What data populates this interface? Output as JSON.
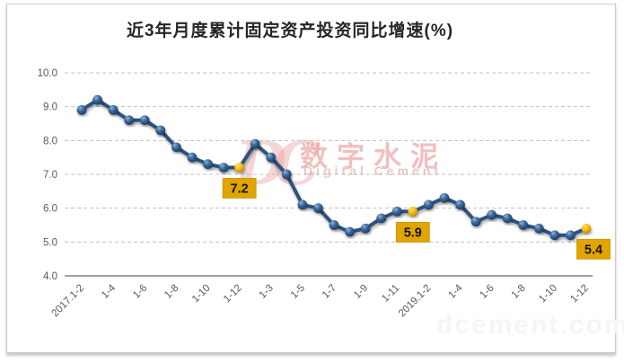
{
  "title": "近3年月度累计固定资产投资同比增速(%)",
  "watermark": {
    "monogram": "DC",
    "cn": "数字水泥",
    "en": "Digital Cement",
    "url": "dcement.com"
  },
  "chart_data": {
    "type": "line",
    "title": "近3年月度累计固定资产投资同比增速(%)",
    "n_points": 33,
    "values": [
      8.9,
      9.2,
      8.9,
      8.6,
      8.6,
      8.3,
      7.8,
      7.5,
      7.3,
      7.2,
      7.2,
      7.9,
      7.5,
      7.0,
      6.1,
      6.0,
      5.5,
      5.3,
      5.4,
      5.7,
      5.9,
      5.9,
      6.1,
      6.3,
      6.1,
      5.6,
      5.8,
      5.7,
      5.5,
      5.4,
      5.2,
      5.2,
      5.4
    ],
    "x_tick_labels": [
      "2017.1-2",
      "1-4",
      "1-6",
      "1-8",
      "1-10",
      "1-12",
      "1-3",
      "1-5",
      "1-7",
      "1-9",
      "1-11",
      "2019.1-2",
      "1-4",
      "1-6",
      "1-8",
      "1-10",
      "1-12"
    ],
    "x_tick_every": 2,
    "y_tick_labels": [
      "10.0",
      "9.0",
      "8.0",
      "7.0",
      "6.0",
      "5.0",
      "4.0"
    ],
    "ylim": [
      4.0,
      10.0
    ],
    "grid": "horizontal-dashed",
    "legend": "none",
    "highlights": [
      {
        "point_index": 10,
        "value_label": "7.2"
      },
      {
        "point_index": 21,
        "value_label": "5.9"
      },
      {
        "point_index": 32,
        "value_label": "5.4"
      }
    ],
    "colors": {
      "line": "#2a5280",
      "marker": "#3c6a9a",
      "highlight_marker": "#f2b705",
      "callout_bg": "#e0a500",
      "callout_border": "#c59400",
      "callout_text": "#141414",
      "grid": "#c0c0c0",
      "axis": "#808080",
      "tick_text": "#595959",
      "title_text": "#262626"
    }
  }
}
